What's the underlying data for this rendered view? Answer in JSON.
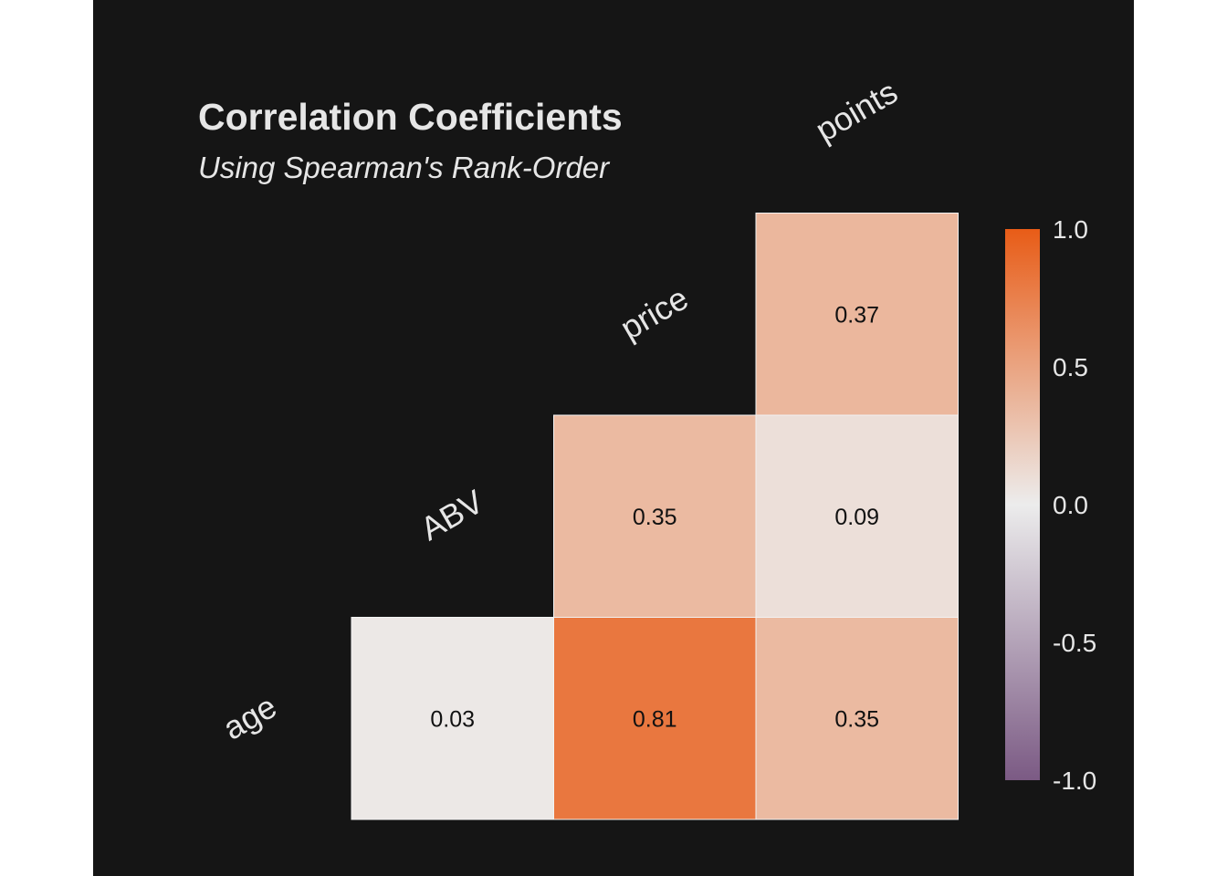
{
  "colors": {
    "background": "#ffffff",
    "panel": "#151515",
    "text": "#e6e6e6",
    "cell_text": "#111111",
    "cell_border": "#f2f2f2",
    "scale_low": "#7b5a84",
    "scale_mid": "#ececec",
    "scale_high": "#e85c17"
  },
  "chart_data": {
    "type": "heatmap",
    "title": "Correlation Coefficients",
    "subtitle": "Using Spearman's Rank-Order",
    "variables": [
      "age",
      "ABV",
      "price",
      "points"
    ],
    "cells": [
      {
        "row": "age",
        "col": "ABV",
        "value": 0.03,
        "label": "0.03"
      },
      {
        "row": "age",
        "col": "price",
        "value": 0.81,
        "label": "0.81"
      },
      {
        "row": "age",
        "col": "points",
        "value": 0.35,
        "label": "0.35"
      },
      {
        "row": "ABV",
        "col": "price",
        "value": 0.35,
        "label": "0.35"
      },
      {
        "row": "ABV",
        "col": "points",
        "value": 0.09,
        "label": "0.09"
      },
      {
        "row": "price",
        "col": "points",
        "value": 0.37,
        "label": "0.37"
      }
    ],
    "color_scale": {
      "range": [
        -1.0,
        1.0
      ],
      "ticks": [
        1.0,
        0.5,
        0.0,
        -0.5,
        -1.0
      ],
      "tick_labels": [
        "1.0",
        "0.5",
        "0.0",
        "-0.5",
        "-1.0"
      ]
    },
    "legend_position": "right",
    "grid": false
  }
}
